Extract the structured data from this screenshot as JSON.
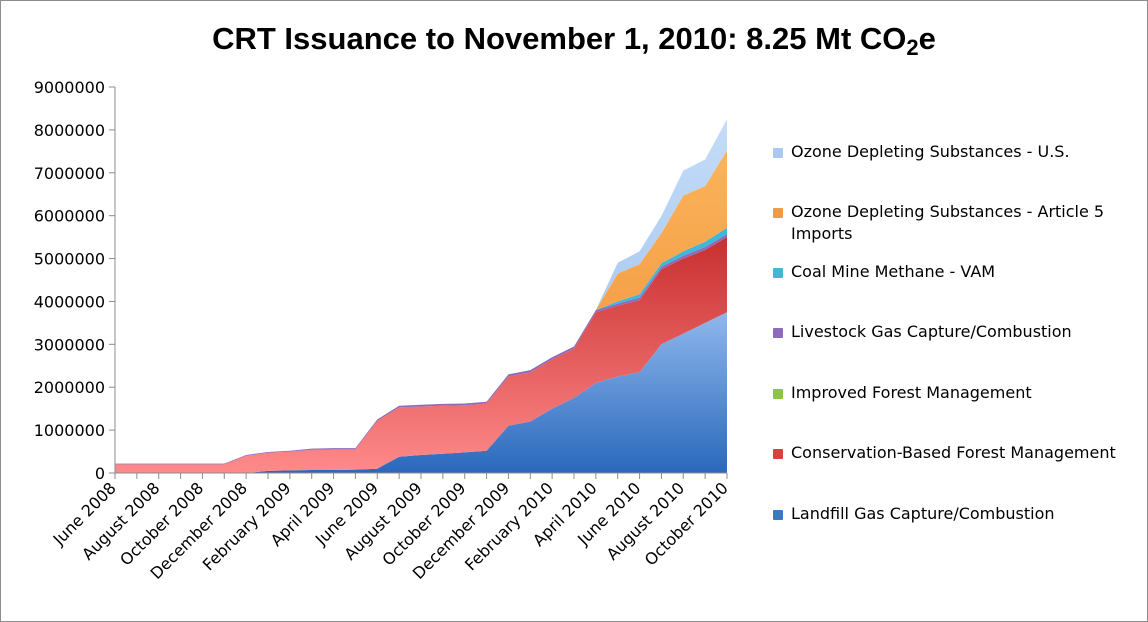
{
  "chart_data": {
    "type": "area",
    "stacked": true,
    "title_main": "CRT Issuance to November 1, 2010: 8.25 Mt CO",
    "title_sub": "2",
    "title_tail": "e",
    "x_tick_labels": [
      "June 2008",
      "August 2008",
      "October 2008",
      "December 2008",
      "February 2009",
      "April 2009",
      "June 2009",
      "August 2009",
      "October 2009",
      "December 2009",
      "February 2010",
      "April 2010",
      "June 2010",
      "August 2010",
      "October 2010"
    ],
    "x": [
      "June 2008",
      "July 2008",
      "August 2008",
      "September 2008",
      "October 2008",
      "November 2008",
      "December 2008",
      "January 2009",
      "February 2009",
      "March 2009",
      "April 2009",
      "May 2009",
      "June 2009",
      "July 2009",
      "August 2009",
      "September 2009",
      "October 2009",
      "November 2009",
      "December 2009",
      "January 2010",
      "February 2010",
      "March 2010",
      "April 2010",
      "May 2010",
      "June 2010",
      "July 2010",
      "August 2010",
      "September 2010",
      "October 2010"
    ],
    "ylim": [
      0,
      9000000
    ],
    "y_ticks": [
      0,
      1000000,
      2000000,
      3000000,
      4000000,
      5000000,
      6000000,
      7000000,
      8000000,
      9000000
    ],
    "grid": false,
    "legend_position": "right",
    "series": [
      {
        "name": "Landfill Gas Capture/Combustion",
        "color": "#3a78c4",
        "values": [
          0,
          0,
          0,
          0,
          0,
          0,
          0,
          50000,
          60000,
          70000,
          70000,
          80000,
          100000,
          380000,
          420000,
          450000,
          480000,
          520000,
          1100000,
          1200000,
          1500000,
          1750000,
          2100000,
          2250000,
          2350000,
          3000000,
          3250000,
          3500000,
          3750000
        ]
      },
      {
        "name": "Conservation-Based Forest Management",
        "color": "#d9413d",
        "values": [
          200000,
          200000,
          200000,
          200000,
          200000,
          200000,
          400000,
          420000,
          440000,
          470000,
          480000,
          470000,
          1120000,
          1150000,
          1130000,
          1120000,
          1100000,
          1100000,
          1150000,
          1150000,
          1150000,
          1150000,
          1650000,
          1650000,
          1680000,
          1750000,
          1750000,
          1700000,
          1750000
        ]
      },
      {
        "name": "Improved Forest Management",
        "color": "#8cc640",
        "values": [
          0,
          0,
          0,
          0,
          0,
          0,
          0,
          0,
          0,
          0,
          0,
          0,
          0,
          0,
          0,
          0,
          0,
          0,
          0,
          0,
          0,
          0,
          0,
          0,
          0,
          0,
          0,
          0,
          0
        ]
      },
      {
        "name": "Livestock Gas Capture/Combustion",
        "color": "#8e6bb8",
        "values": [
          20000,
          20000,
          20000,
          20000,
          20000,
          20000,
          20000,
          20000,
          20000,
          30000,
          30000,
          30000,
          30000,
          40000,
          40000,
          40000,
          40000,
          40000,
          50000,
          50000,
          50000,
          50000,
          50000,
          50000,
          60000,
          60000,
          70000,
          70000,
          70000
        ]
      },
      {
        "name": "Coal Mine Methane - VAM",
        "color": "#3fb8d8",
        "values": [
          0,
          0,
          0,
          0,
          0,
          0,
          0,
          0,
          0,
          0,
          0,
          0,
          0,
          0,
          0,
          0,
          0,
          0,
          0,
          0,
          0,
          0,
          0,
          50000,
          80000,
          80000,
          100000,
          120000,
          150000
        ]
      },
      {
        "name": "Ozone Depleting Substances - Article 5 Imports",
        "color": "#f29a43",
        "values": [
          0,
          0,
          0,
          0,
          0,
          0,
          0,
          0,
          0,
          0,
          0,
          0,
          0,
          0,
          0,
          0,
          0,
          0,
          0,
          0,
          0,
          0,
          0,
          650000,
          700000,
          700000,
          1300000,
          1300000,
          1800000
        ]
      },
      {
        "name": "Ozone Depleting Substances - U.S.",
        "color": "#a9c9f0",
        "values": [
          0,
          0,
          0,
          0,
          0,
          0,
          0,
          0,
          0,
          0,
          0,
          0,
          0,
          0,
          0,
          0,
          0,
          0,
          0,
          0,
          0,
          0,
          0,
          250000,
          300000,
          400000,
          580000,
          620000,
          730000
        ]
      }
    ],
    "legend_order": [
      "Ozone Depleting Substances - U.S.",
      "Ozone Depleting Substances - Article 5 Imports",
      "Coal Mine Methane - VAM",
      "Livestock Gas Capture/Combustion",
      "Improved Forest Management",
      "Conservation-Based Forest Management",
      "Landfill Gas Capture/Combustion"
    ]
  }
}
